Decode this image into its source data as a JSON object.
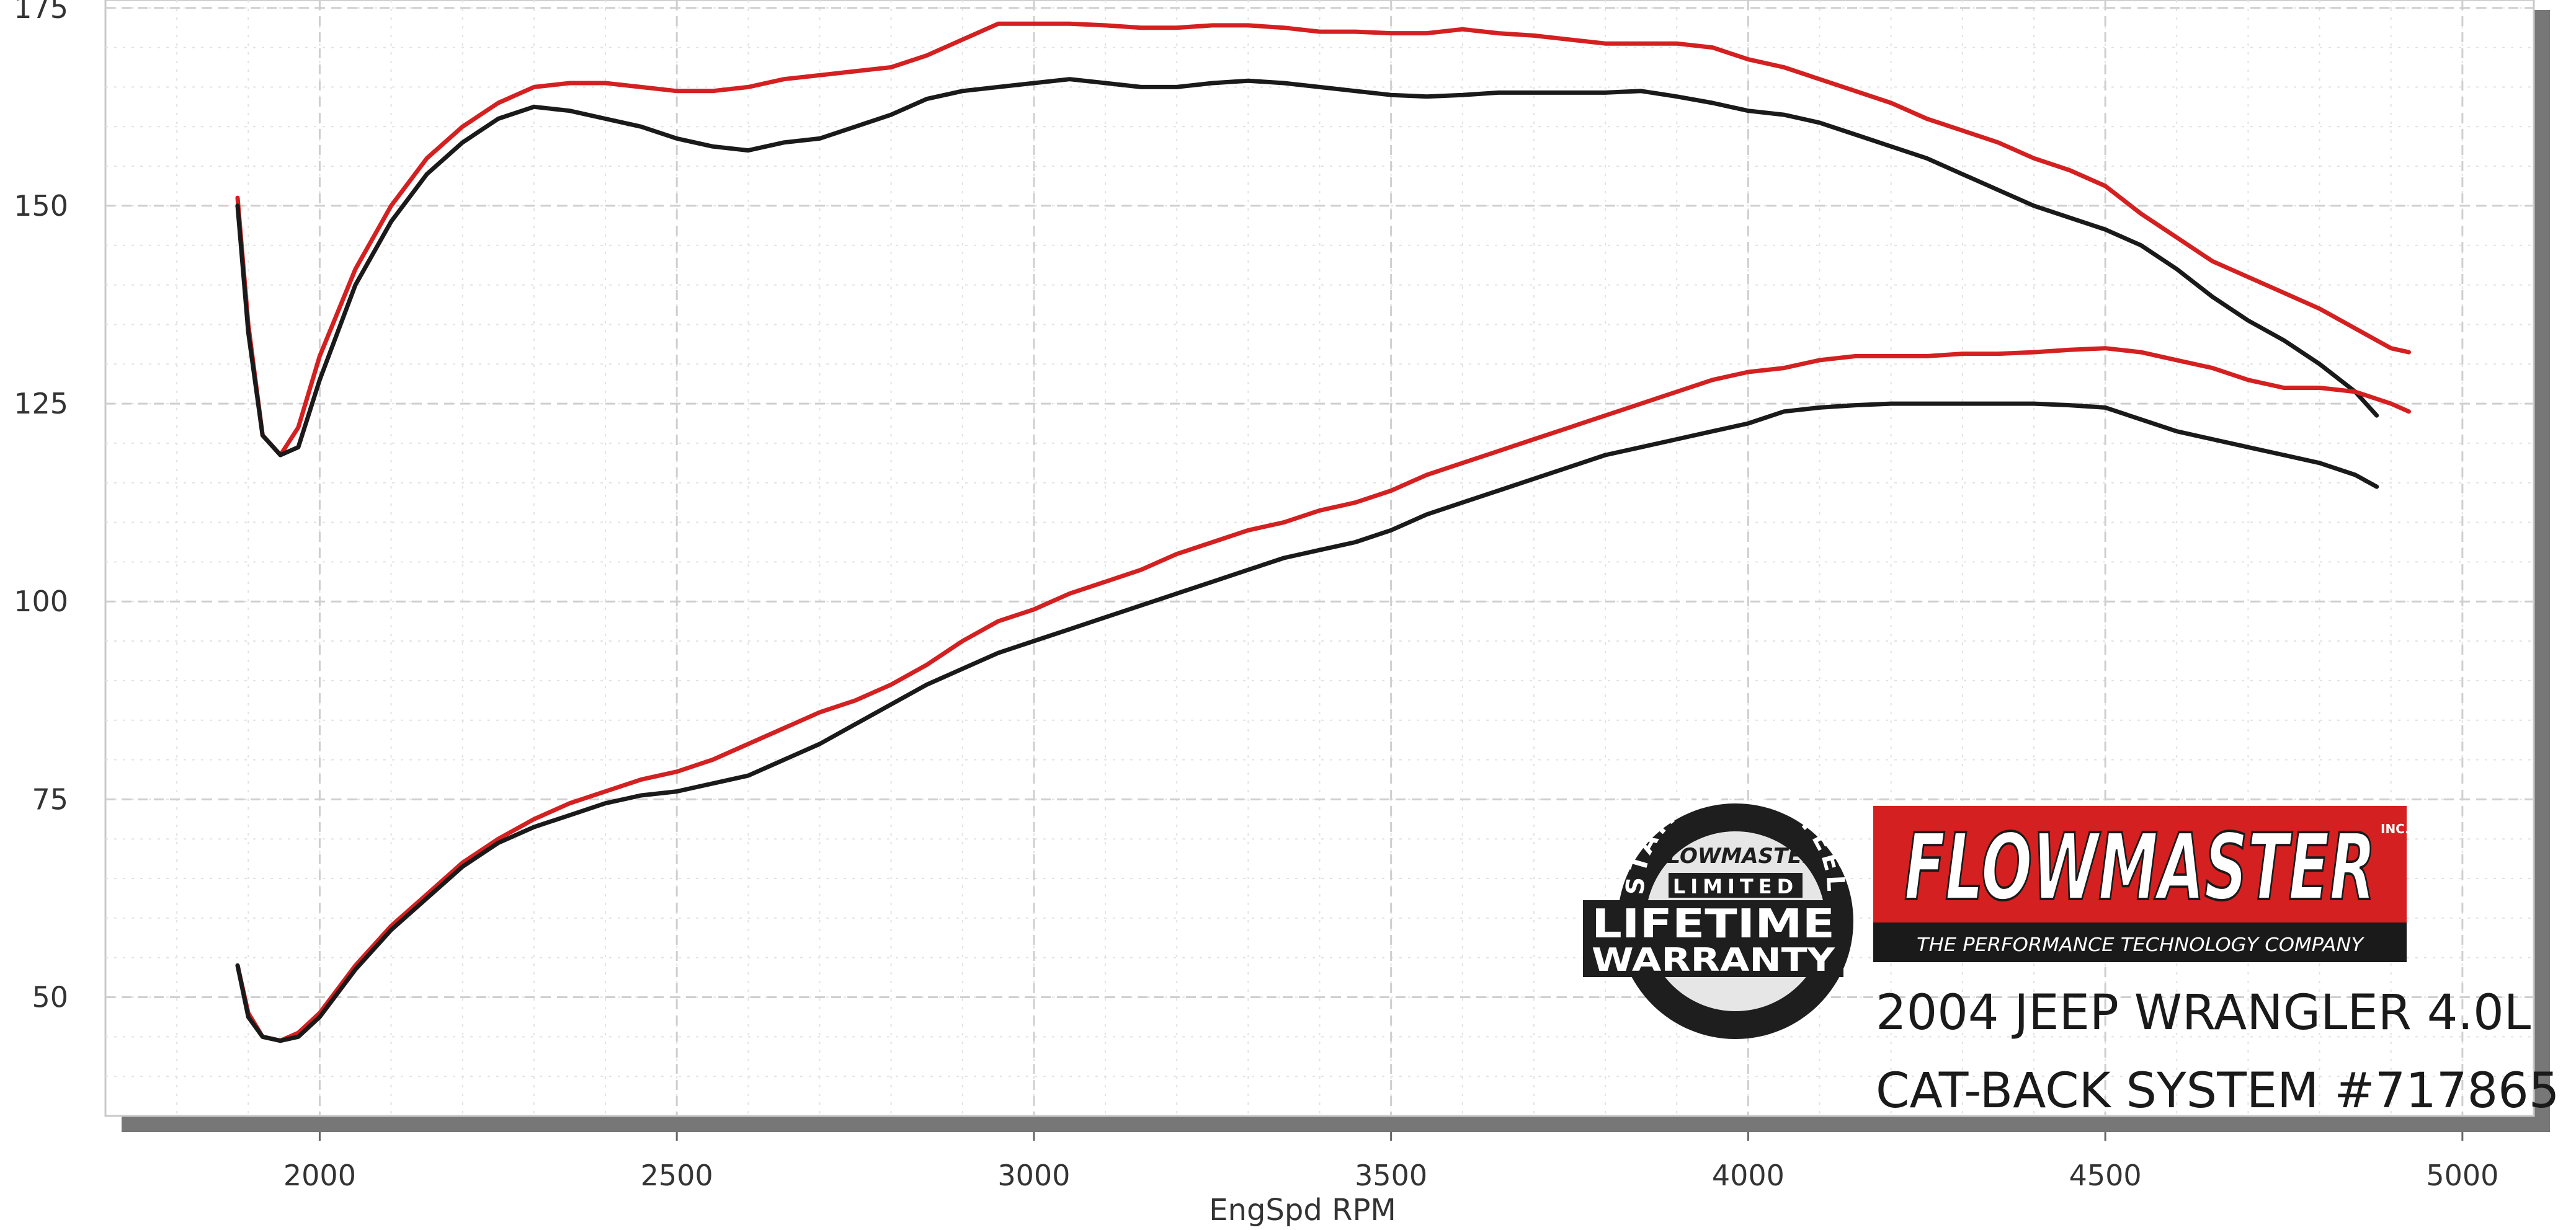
{
  "chart_data": {
    "type": "line",
    "xlabel": "EngSpd  RPM",
    "ylabel": "",
    "xlim": [
      1700,
      5100
    ],
    "ylim": [
      35,
      176
    ],
    "x_ticks": [
      "2000",
      "2500",
      "3000",
      "3500",
      "4000",
      "4500",
      "5000"
    ],
    "y_ticks": [
      "50",
      "75",
      "100",
      "125",
      "150",
      "175"
    ],
    "grid": true,
    "series": [
      {
        "color": "#d42020",
        "x": [
          1885,
          1900,
          1920,
          1945,
          1970,
          2000,
          2050,
          2100,
          2150,
          2200,
          2250,
          2300,
          2350,
          2400,
          2450,
          2500,
          2550,
          2600,
          2650,
          2700,
          2750,
          2800,
          2850,
          2900,
          2950,
          3000,
          3050,
          3100,
          3150,
          3200,
          3250,
          3300,
          3350,
          3400,
          3450,
          3500,
          3550,
          3600,
          3650,
          3700,
          3750,
          3800,
          3850,
          3900,
          3950,
          4000,
          4050,
          4100,
          4150,
          4200,
          4250,
          4300,
          4350,
          4400,
          4450,
          4500,
          4550,
          4600,
          4650,
          4700,
          4750,
          4800,
          4850,
          4900,
          4925
        ],
        "values": [
          151,
          135,
          121,
          118.5,
          122,
          131,
          142,
          150,
          156,
          160,
          163,
          165,
          165.5,
          165.5,
          165,
          164.5,
          164.5,
          165,
          166,
          166.5,
          167,
          167.5,
          169,
          171,
          173,
          173,
          173,
          172.8,
          172.5,
          172.5,
          172.8,
          172.8,
          172.5,
          172,
          172,
          171.8,
          171.8,
          172.3,
          171.8,
          171.5,
          171,
          170.5,
          170.5,
          170.5,
          170,
          168.5,
          167.5,
          166,
          164.5,
          163,
          161,
          159.5,
          158,
          156,
          154.5,
          152.5,
          149,
          146,
          143,
          141,
          139,
          137,
          134.5,
          132,
          131.5
        ]
      },
      {
        "color": "#1a1a1a",
        "x": [
          1885,
          1900,
          1920,
          1945,
          1970,
          2000,
          2050,
          2100,
          2150,
          2200,
          2250,
          2300,
          2350,
          2400,
          2450,
          2500,
          2550,
          2600,
          2650,
          2700,
          2750,
          2800,
          2850,
          2900,
          2950,
          3000,
          3050,
          3100,
          3150,
          3200,
          3250,
          3300,
          3350,
          3400,
          3450,
          3500,
          3550,
          3600,
          3650,
          3700,
          3750,
          3800,
          3850,
          3900,
          3950,
          4000,
          4050,
          4100,
          4150,
          4200,
          4250,
          4300,
          4350,
          4400,
          4450,
          4500,
          4550,
          4600,
          4650,
          4700,
          4750,
          4800,
          4850,
          4880
        ],
        "values": [
          150,
          134,
          121,
          118.5,
          119.5,
          128,
          140,
          148,
          154,
          158,
          161,
          162.5,
          162,
          161,
          160,
          158.5,
          157.5,
          157,
          158,
          158.5,
          160,
          161.5,
          163.5,
          164.5,
          165,
          165.5,
          166,
          165.5,
          165,
          165,
          165.5,
          165.8,
          165.5,
          165,
          164.5,
          164,
          163.8,
          164,
          164.3,
          164.3,
          164.3,
          164.3,
          164.5,
          163.8,
          163,
          162,
          161.5,
          160.5,
          159,
          157.5,
          156,
          154,
          152,
          150,
          148.5,
          147,
          145,
          142,
          138.5,
          135.5,
          133,
          130,
          126.5,
          123.5
        ]
      },
      {
        "color": "#d42020",
        "x": [
          1885,
          1900,
          1920,
          1945,
          1970,
          2000,
          2050,
          2100,
          2150,
          2200,
          2250,
          2300,
          2350,
          2400,
          2450,
          2500,
          2550,
          2600,
          2650,
          2700,
          2750,
          2800,
          2850,
          2900,
          2950,
          3000,
          3050,
          3100,
          3150,
          3200,
          3250,
          3300,
          3350,
          3400,
          3450,
          3500,
          3550,
          3600,
          3650,
          3700,
          3750,
          3800,
          3850,
          3900,
          3950,
          4000,
          4050,
          4100,
          4150,
          4200,
          4250,
          4300,
          4350,
          4400,
          4450,
          4500,
          4550,
          4600,
          4650,
          4700,
          4750,
          4800,
          4850,
          4900,
          4925
        ],
        "values": [
          54,
          48,
          45,
          44.5,
          45.5,
          48,
          54,
          59,
          63,
          67,
          70,
          72.5,
          74.5,
          76,
          77.5,
          78.5,
          80,
          82,
          84,
          86,
          87.5,
          89.5,
          92,
          95,
          97.5,
          99,
          101,
          102.5,
          104,
          106,
          107.5,
          109,
          110,
          111.5,
          112.5,
          114,
          116,
          117.5,
          119,
          120.5,
          122,
          123.5,
          125,
          126.5,
          128,
          129,
          129.5,
          130.5,
          131,
          131,
          131,
          131.3,
          131.3,
          131.5,
          131.8,
          132,
          131.5,
          130.5,
          129.5,
          128,
          127,
          127,
          126.5,
          125,
          124
        ]
      },
      {
        "color": "#1a1a1a",
        "x": [
          1885,
          1900,
          1920,
          1945,
          1970,
          2000,
          2050,
          2100,
          2150,
          2200,
          2250,
          2300,
          2350,
          2400,
          2450,
          2500,
          2550,
          2600,
          2650,
          2700,
          2750,
          2800,
          2850,
          2900,
          2950,
          3000,
          3050,
          3100,
          3150,
          3200,
          3250,
          3300,
          3350,
          3400,
          3450,
          3500,
          3550,
          3600,
          3650,
          3700,
          3750,
          3800,
          3850,
          3900,
          3950,
          4000,
          4050,
          4100,
          4150,
          4200,
          4250,
          4300,
          4350,
          4400,
          4450,
          4500,
          4550,
          4600,
          4650,
          4700,
          4750,
          4800,
          4850,
          4880
        ],
        "values": [
          54,
          47.5,
          45,
          44.5,
          45,
          47.5,
          53.5,
          58.5,
          62.5,
          66.5,
          69.5,
          71.5,
          73,
          74.5,
          75.5,
          76,
          77,
          78,
          80,
          82,
          84.5,
          87,
          89.5,
          91.5,
          93.5,
          95,
          96.5,
          98,
          99.5,
          101,
          102.5,
          104,
          105.5,
          106.5,
          107.5,
          109,
          111,
          112.5,
          114,
          115.5,
          117,
          118.5,
          119.5,
          120.5,
          121.5,
          122.5,
          124,
          124.5,
          124.8,
          125,
          125,
          125,
          125,
          125,
          124.8,
          124.5,
          123,
          121.5,
          120.5,
          119.5,
          118.5,
          117.5,
          116,
          114.5
        ]
      }
    ],
    "annotations": {
      "model_line1": "2004 JEEP WRANGLER 4.0L",
      "model_line2": "CAT-BACK SYSTEM #717865"
    },
    "logos": {
      "flowmaster_wordmark": "FLOWMASTER",
      "flowmaster_inc": "INC.",
      "flowmaster_tagline": "THE PERFORMANCE TECHNOLOGY COMPANY",
      "badge_arc": "STAINLESS STEEL",
      "badge_brand": "FLOWMASTER",
      "badge_limited": "LIMITED",
      "badge_lifetime": "LIFETIME",
      "badge_warranty": "WARRANTY"
    }
  }
}
